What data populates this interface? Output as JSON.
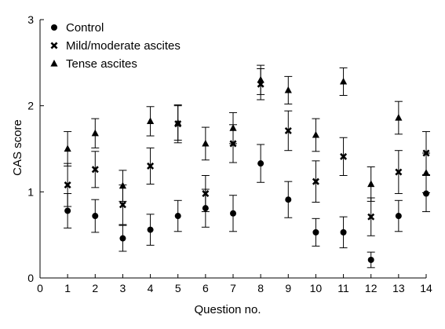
{
  "chart_data": {
    "type": "scatter",
    "title": "",
    "xlabel": "Question no.",
    "ylabel": "CAS score",
    "xlim": [
      0,
      14
    ],
    "ylim": [
      0,
      3
    ],
    "x_ticks": [
      "0",
      "1",
      "2",
      "3",
      "4",
      "5",
      "6",
      "7",
      "8",
      "9",
      "10",
      "11",
      "12",
      "13",
      "14"
    ],
    "y_ticks": [
      "0",
      "1",
      "2",
      "3"
    ],
    "grid": false,
    "legend_position": "top-left",
    "error_bars": true,
    "series": [
      {
        "name": "Control",
        "marker": "circle",
        "x": [
          1,
          2,
          3,
          4,
          5,
          6,
          7,
          8,
          9,
          10,
          11,
          12,
          13,
          14
        ],
        "y": [
          0.78,
          0.72,
          0.46,
          0.56,
          0.72,
          0.81,
          0.75,
          1.33,
          0.91,
          0.53,
          0.53,
          0.21,
          0.72,
          0.98
        ],
        "err": [
          0.2,
          0.19,
          0.15,
          0.18,
          0.18,
          0.22,
          0.21,
          0.22,
          0.21,
          0.16,
          0.18,
          0.09,
          0.18,
          0.21
        ]
      },
      {
        "name": "Mild/moderate ascites",
        "marker": "x",
        "x": [
          1,
          2,
          3,
          4,
          5,
          6,
          7,
          8,
          9,
          10,
          11,
          12,
          13,
          14
        ],
        "y": [
          1.08,
          1.26,
          0.85,
          1.3,
          1.79,
          0.98,
          1.56,
          2.25,
          1.71,
          1.12,
          1.41,
          0.71,
          1.23,
          1.45
        ],
        "err": [
          0.25,
          0.21,
          0.23,
          0.21,
          0.22,
          0.21,
          0.22,
          0.18,
          0.23,
          0.24,
          0.22,
          0.22,
          0.25,
          0.25
        ]
      },
      {
        "name": "Tense ascites",
        "marker": "triangle",
        "x": [
          1,
          2,
          3,
          4,
          5,
          6,
          7,
          8,
          9,
          10,
          11,
          12,
          13,
          14
        ],
        "y": [
          1.5,
          1.68,
          1.07,
          1.82,
          1.8,
          1.56,
          1.74,
          2.3,
          2.18,
          1.66,
          2.28,
          1.09,
          1.86,
          1.22
        ],
        "err": [
          0.2,
          0.17,
          0.18,
          0.17,
          0.2,
          0.19,
          0.18,
          0.17,
          0.16,
          0.19,
          0.16,
          0.2,
          0.19,
          0.23
        ]
      }
    ]
  }
}
